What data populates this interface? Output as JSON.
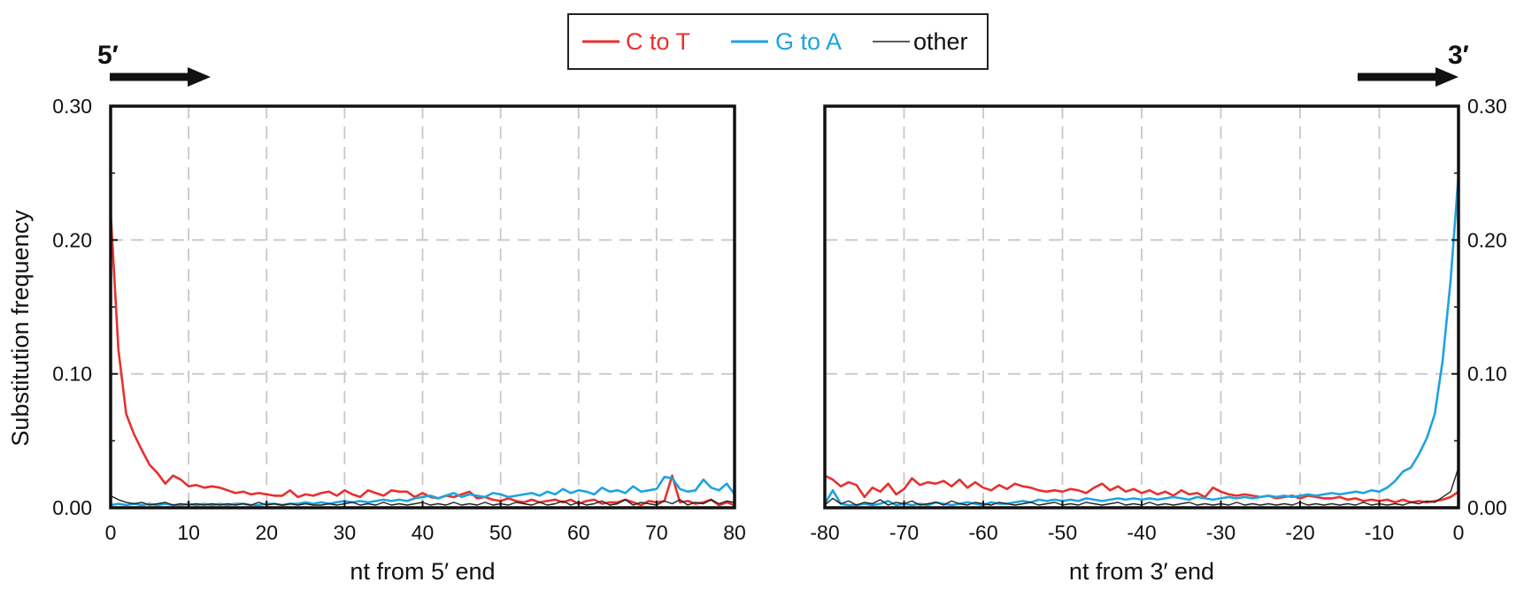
{
  "legend": [
    {
      "label": "C to T",
      "color": "#e8302e"
    },
    {
      "label": "G to A",
      "color": "#1ea3df"
    },
    {
      "label": "other",
      "color": "#222222"
    }
  ],
  "end_labels": {
    "left": "5′",
    "right": "3′"
  },
  "chart_data": [
    {
      "type": "line",
      "panel": "5' end",
      "xlabel": "nt from 5′ end",
      "ylabel": "Substitution frequency",
      "xlim": [
        0,
        80
      ],
      "ylim": [
        0,
        0.3
      ],
      "xticks": [
        0,
        10,
        20,
        30,
        40,
        50,
        60,
        70,
        80
      ],
      "xtick_labels": [
        "0",
        "10",
        "20",
        "30",
        "40",
        "50",
        "60",
        "70",
        "80"
      ],
      "yticks": [
        0,
        0.1,
        0.2,
        0.3
      ],
      "ytick_labels": [
        "0.00",
        "0.10",
        "0.20",
        "0.30"
      ],
      "grid": true,
      "series": [
        {
          "name": "C to T",
          "color": "#e8302e",
          "x": [
            0,
            1,
            2,
            3,
            4,
            5,
            6,
            7,
            8,
            9,
            10,
            11,
            12,
            13,
            14,
            15,
            16,
            17,
            18,
            19,
            20,
            21,
            22,
            23,
            24,
            25,
            26,
            27,
            28,
            29,
            30,
            31,
            32,
            33,
            34,
            35,
            36,
            37,
            38,
            39,
            40,
            41,
            42,
            43,
            44,
            45,
            46,
            47,
            48,
            49,
            50,
            51,
            52,
            53,
            54,
            55,
            56,
            57,
            58,
            59,
            60,
            61,
            62,
            63,
            64,
            65,
            66,
            67,
            68,
            69,
            70,
            71,
            72,
            73,
            74,
            75,
            76,
            77,
            78,
            79,
            80
          ],
          "y": [
            0.221,
            0.118,
            0.07,
            0.055,
            0.043,
            0.032,
            0.026,
            0.018,
            0.024,
            0.021,
            0.016,
            0.017,
            0.015,
            0.016,
            0.015,
            0.013,
            0.011,
            0.012,
            0.01,
            0.011,
            0.01,
            0.009,
            0.009,
            0.013,
            0.008,
            0.01,
            0.009,
            0.011,
            0.012,
            0.009,
            0.013,
            0.01,
            0.008,
            0.013,
            0.011,
            0.009,
            0.013,
            0.012,
            0.012,
            0.008,
            0.011,
            0.008,
            0.007,
            0.009,
            0.008,
            0.01,
            0.012,
            0.007,
            0.008,
            0.006,
            0.005,
            0.007,
            0.005,
            0.004,
            0.006,
            0.004,
            0.005,
            0.006,
            0.004,
            0.006,
            0.003,
            0.005,
            0.006,
            0.003,
            0.004,
            0.004,
            0.006,
            0.004,
            0.002,
            0.005,
            0.004,
            0.005,
            0.024,
            0.004,
            0.005,
            0.003,
            0.004,
            0.006,
            0.002,
            0.004,
            0.002
          ]
        },
        {
          "name": "G to A",
          "color": "#1ea3df",
          "x": [
            0,
            1,
            2,
            3,
            4,
            5,
            6,
            7,
            8,
            9,
            10,
            11,
            12,
            13,
            14,
            15,
            16,
            17,
            18,
            19,
            20,
            21,
            22,
            23,
            24,
            25,
            26,
            27,
            28,
            29,
            30,
            31,
            32,
            33,
            34,
            35,
            36,
            37,
            38,
            39,
            40,
            41,
            42,
            43,
            44,
            45,
            46,
            47,
            48,
            49,
            50,
            51,
            52,
            53,
            54,
            55,
            56,
            57,
            58,
            59,
            60,
            61,
            62,
            63,
            64,
            65,
            66,
            67,
            68,
            69,
            70,
            71,
            72,
            73,
            74,
            75,
            76,
            77,
            78,
            79,
            80
          ],
          "y": [
            0.002,
            0.003,
            0.002,
            0.003,
            0.002,
            0.003,
            0.002,
            0.003,
            0.002,
            0.002,
            0.003,
            0.002,
            0.003,
            0.002,
            0.003,
            0.002,
            0.003,
            0.003,
            0.002,
            0.002,
            0.003,
            0.003,
            0.002,
            0.003,
            0.003,
            0.004,
            0.003,
            0.004,
            0.003,
            0.004,
            0.005,
            0.004,
            0.005,
            0.004,
            0.005,
            0.006,
            0.005,
            0.006,
            0.005,
            0.007,
            0.008,
            0.009,
            0.007,
            0.009,
            0.011,
            0.008,
            0.01,
            0.009,
            0.008,
            0.011,
            0.01,
            0.008,
            0.009,
            0.01,
            0.011,
            0.009,
            0.012,
            0.01,
            0.014,
            0.011,
            0.013,
            0.012,
            0.01,
            0.015,
            0.012,
            0.013,
            0.011,
            0.016,
            0.012,
            0.013,
            0.014,
            0.023,
            0.022,
            0.014,
            0.012,
            0.013,
            0.021,
            0.015,
            0.013,
            0.018,
            0.01
          ]
        },
        {
          "name": "other",
          "color": "#222222",
          "x": [
            0,
            1,
            2,
            3,
            4,
            5,
            6,
            7,
            8,
            9,
            10,
            11,
            12,
            13,
            14,
            15,
            16,
            17,
            18,
            19,
            20,
            21,
            22,
            23,
            24,
            25,
            26,
            27,
            28,
            29,
            30,
            31,
            32,
            33,
            34,
            35,
            36,
            37,
            38,
            39,
            40,
            41,
            42,
            43,
            44,
            45,
            46,
            47,
            48,
            49,
            50,
            51,
            52,
            53,
            54,
            55,
            56,
            57,
            58,
            59,
            60,
            61,
            62,
            63,
            64,
            65,
            66,
            67,
            68,
            69,
            70,
            71,
            72,
            73,
            74,
            75,
            76,
            77,
            78,
            79,
            80
          ],
          "y": [
            0.009,
            0.006,
            0.004,
            0.003,
            0.004,
            0.002,
            0.003,
            0.004,
            0.002,
            0.003,
            0.002,
            0.003,
            0.002,
            0.003,
            0.002,
            0.003,
            0.002,
            0.003,
            0.002,
            0.004,
            0.002,
            0.003,
            0.002,
            0.003,
            0.002,
            0.003,
            0.002,
            0.002,
            0.003,
            0.002,
            0.003,
            0.004,
            0.002,
            0.003,
            0.002,
            0.004,
            0.002,
            0.003,
            0.002,
            0.003,
            0.004,
            0.002,
            0.003,
            0.002,
            0.004,
            0.002,
            0.003,
            0.002,
            0.004,
            0.002,
            0.003,
            0.002,
            0.004,
            0.003,
            0.002,
            0.004,
            0.002,
            0.003,
            0.005,
            0.002,
            0.004,
            0.002,
            0.003,
            0.005,
            0.002,
            0.003,
            0.006,
            0.002,
            0.004,
            0.003,
            0.002,
            0.005,
            0.003,
            0.006,
            0.002,
            0.004,
            0.003,
            0.006,
            0.003,
            0.005,
            0.004
          ]
        }
      ]
    },
    {
      "type": "line",
      "panel": "3' end",
      "xlabel": "nt from 3′ end",
      "ylabel": "",
      "xlim": [
        -80,
        0
      ],
      "ylim": [
        0,
        0.3
      ],
      "xticks": [
        -80,
        -70,
        -60,
        -50,
        -40,
        -30,
        -20,
        -10,
        0
      ],
      "xtick_labels": [
        "-80",
        "-70",
        "-60",
        "-50",
        "-40",
        "-30",
        "-20",
        "-10",
        "0"
      ],
      "yticks": [
        0,
        0.1,
        0.2,
        0.3
      ],
      "ytick_labels": [
        "0.00",
        "0.10",
        "0.20",
        "0.30"
      ],
      "grid": true,
      "series": [
        {
          "name": "C to T",
          "color": "#e8302e",
          "x": [
            -80,
            -79,
            -78,
            -77,
            -76,
            -75,
            -74,
            -73,
            -72,
            -71,
            -70,
            -69,
            -68,
            -67,
            -66,
            -65,
            -64,
            -63,
            -62,
            -61,
            -60,
            -59,
            -58,
            -57,
            -56,
            -55,
            -54,
            -53,
            -52,
            -51,
            -50,
            -49,
            -48,
            -47,
            -46,
            -45,
            -44,
            -43,
            -42,
            -41,
            -40,
            -39,
            -38,
            -37,
            -36,
            -35,
            -34,
            -33,
            -32,
            -31,
            -30,
            -29,
            -28,
            -27,
            -26,
            -25,
            -24,
            -23,
            -22,
            -21,
            -20,
            -19,
            -18,
            -17,
            -16,
            -15,
            -14,
            -13,
            -12,
            -11,
            -10,
            -9,
            -8,
            -7,
            -6,
            -5,
            -4,
            -3,
            -2,
            -1,
            0
          ],
          "y": [
            0.024,
            0.021,
            0.016,
            0.019,
            0.017,
            0.008,
            0.015,
            0.012,
            0.018,
            0.01,
            0.014,
            0.022,
            0.017,
            0.019,
            0.018,
            0.02,
            0.016,
            0.021,
            0.015,
            0.019,
            0.015,
            0.013,
            0.017,
            0.014,
            0.018,
            0.016,
            0.015,
            0.013,
            0.012,
            0.013,
            0.012,
            0.014,
            0.013,
            0.011,
            0.015,
            0.018,
            0.013,
            0.016,
            0.012,
            0.014,
            0.011,
            0.013,
            0.01,
            0.012,
            0.009,
            0.013,
            0.01,
            0.011,
            0.008,
            0.015,
            0.012,
            0.01,
            0.009,
            0.01,
            0.009,
            0.008,
            0.009,
            0.007,
            0.008,
            0.009,
            0.007,
            0.009,
            0.008,
            0.007,
            0.007,
            0.008,
            0.006,
            0.007,
            0.005,
            0.006,
            0.005,
            0.006,
            0.004,
            0.006,
            0.004,
            0.005,
            0.004,
            0.005,
            0.006,
            0.008,
            0.012
          ]
        },
        {
          "name": "G to A",
          "color": "#1ea3df",
          "x": [
            -80,
            -79,
            -78,
            -77,
            -76,
            -75,
            -74,
            -73,
            -72,
            -71,
            -70,
            -69,
            -68,
            -67,
            -66,
            -65,
            -64,
            -63,
            -62,
            -61,
            -60,
            -59,
            -58,
            -57,
            -56,
            -55,
            -54,
            -53,
            -52,
            -51,
            -50,
            -49,
            -48,
            -47,
            -46,
            -45,
            -44,
            -43,
            -42,
            -41,
            -40,
            -39,
            -38,
            -37,
            -36,
            -35,
            -34,
            -33,
            -32,
            -31,
            -30,
            -29,
            -28,
            -27,
            -26,
            -25,
            -24,
            -23,
            -22,
            -21,
            -20,
            -19,
            -18,
            -17,
            -16,
            -15,
            -14,
            -13,
            -12,
            -11,
            -10,
            -9,
            -8,
            -7,
            -6,
            -5,
            -4,
            -3,
            -2,
            -1,
            0
          ],
          "y": [
            0.003,
            0.013,
            0.003,
            0.002,
            0.002,
            0.003,
            0.002,
            0.003,
            0.005,
            0.002,
            0.003,
            0.002,
            0.003,
            0.002,
            0.004,
            0.003,
            0.002,
            0.003,
            0.004,
            0.003,
            0.002,
            0.004,
            0.003,
            0.003,
            0.004,
            0.005,
            0.004,
            0.006,
            0.005,
            0.006,
            0.005,
            0.006,
            0.005,
            0.007,
            0.006,
            0.005,
            0.006,
            0.007,
            0.006,
            0.007,
            0.006,
            0.007,
            0.006,
            0.007,
            0.008,
            0.007,
            0.006,
            0.008,
            0.007,
            0.006,
            0.007,
            0.008,
            0.007,
            0.008,
            0.007,
            0.008,
            0.009,
            0.008,
            0.009,
            0.008,
            0.009,
            0.01,
            0.009,
            0.01,
            0.011,
            0.01,
            0.011,
            0.012,
            0.011,
            0.013,
            0.012,
            0.015,
            0.02,
            0.027,
            0.03,
            0.04,
            0.052,
            0.07,
            0.11,
            0.17,
            0.249
          ]
        },
        {
          "name": "other",
          "color": "#222222",
          "x": [
            -80,
            -79,
            -78,
            -77,
            -76,
            -75,
            -74,
            -73,
            -72,
            -71,
            -70,
            -69,
            -68,
            -67,
            -66,
            -65,
            -64,
            -63,
            -62,
            -61,
            -60,
            -59,
            -58,
            -57,
            -56,
            -55,
            -54,
            -53,
            -52,
            -51,
            -50,
            -49,
            -48,
            -47,
            -46,
            -45,
            -44,
            -43,
            -42,
            -41,
            -40,
            -39,
            -38,
            -37,
            -36,
            -35,
            -34,
            -33,
            -32,
            -31,
            -30,
            -29,
            -28,
            -27,
            -26,
            -25,
            -24,
            -23,
            -22,
            -21,
            -20,
            -19,
            -18,
            -17,
            -16,
            -15,
            -14,
            -13,
            -12,
            -11,
            -10,
            -9,
            -8,
            -7,
            -6,
            -5,
            -4,
            -3,
            -2,
            -1,
            0
          ],
          "y": [
            0.002,
            0.007,
            0.003,
            0.005,
            0.002,
            0.004,
            0.003,
            0.006,
            0.002,
            0.004,
            0.003,
            0.005,
            0.002,
            0.003,
            0.004,
            0.002,
            0.005,
            0.003,
            0.002,
            0.004,
            0.003,
            0.002,
            0.004,
            0.003,
            0.002,
            0.003,
            0.004,
            0.002,
            0.003,
            0.004,
            0.002,
            0.003,
            0.002,
            0.004,
            0.003,
            0.002,
            0.003,
            0.004,
            0.002,
            0.003,
            0.002,
            0.004,
            0.002,
            0.003,
            0.002,
            0.003,
            0.004,
            0.002,
            0.003,
            0.002,
            0.003,
            0.002,
            0.004,
            0.002,
            0.003,
            0.002,
            0.003,
            0.002,
            0.003,
            0.002,
            0.004,
            0.002,
            0.003,
            0.002,
            0.003,
            0.002,
            0.003,
            0.002,
            0.004,
            0.002,
            0.003,
            0.002,
            0.003,
            0.002,
            0.004,
            0.003,
            0.005,
            0.004,
            0.008,
            0.012,
            0.03
          ]
        }
      ]
    }
  ]
}
